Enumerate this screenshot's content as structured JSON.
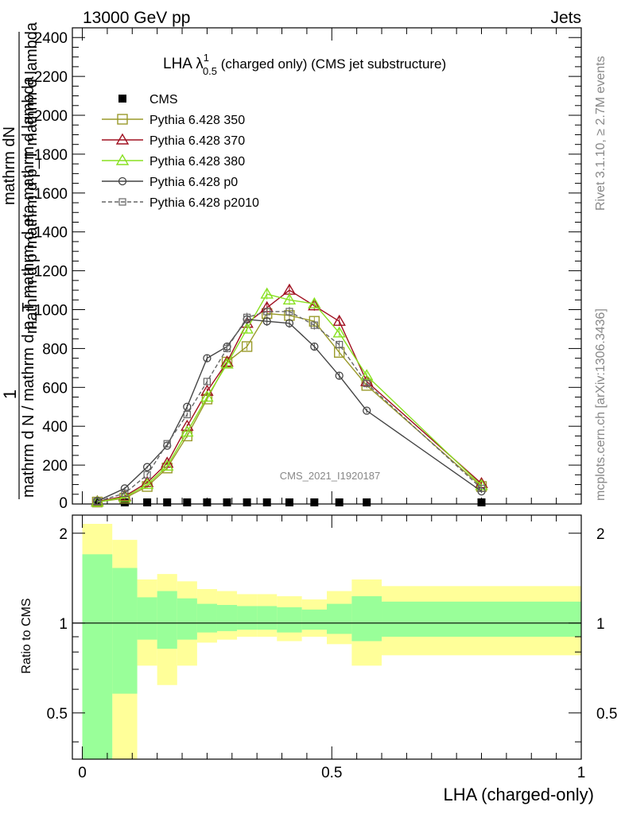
{
  "header": {
    "left": "13000 GeV pp",
    "right": "Jets"
  },
  "side_labels": {
    "rivet": "Rivet 3.1.10, ≥ 2.7M events",
    "mcplots": "mcplots.cern.ch [arXiv:1306.3436]"
  },
  "watermark": "CMS_2021_I1920187",
  "chart_data": [
    {
      "type": "line",
      "title_main": "LHA λ",
      "title_sup": "1",
      "title_sub": "0.5",
      "title_rest": " (charged only) (CMS jet substructure)",
      "ylabel_frac_top": "1",
      "ylabel_num_inner": "mathrm dN",
      "ylabel_den_inner": "mathrm d p mathrm d p_T mathrm d lambda",
      "ylabel_den_outer": "mathrm d N / mathrm d p_T mathrm d eta mathrm d lambda",
      "xlim": [
        -0.02,
        1.0
      ],
      "ylim": [
        0,
        2450
      ],
      "yticks": [
        200,
        400,
        600,
        800,
        1000,
        1200,
        1400,
        1600,
        1800,
        2000,
        2200,
        2400
      ],
      "ytick_labels": [
        "200",
        "400",
        "600",
        "800",
        "1000",
        "1200",
        "1400",
        "1600",
        "1800",
        "2000",
        "2200",
        "2400"
      ],
      "ytick_zero_label": "0",
      "x": [
        0.03,
        0.085,
        0.13,
        0.17,
        0.21,
        0.25,
        0.29,
        0.33,
        0.37,
        0.415,
        0.465,
        0.515,
        0.57,
        0.8
      ],
      "series": [
        {
          "name": "CMS",
          "marker": "filled-square",
          "color": "#000000",
          "values": [
            3,
            3,
            3,
            3,
            3,
            3,
            3,
            3,
            3,
            3,
            3,
            3,
            3,
            3
          ]
        },
        {
          "name": "Pythia 6.428 350",
          "marker": "open-square",
          "color": "#9a9a2a",
          "values": [
            10,
            30,
            90,
            185,
            350,
            540,
            730,
            810,
            980,
            970,
            940,
            780,
            610,
            90
          ]
        },
        {
          "name": "Pythia 6.428 370",
          "marker": "open-triangle",
          "color": "#a01020",
          "values": [
            12,
            40,
            110,
            210,
            400,
            580,
            730,
            930,
            1010,
            1100,
            1020,
            940,
            630,
            105
          ]
        },
        {
          "name": "Pythia 6.428 380",
          "marker": "open-triangle",
          "color": "#88e020",
          "values": [
            10,
            35,
            100,
            195,
            370,
            550,
            720,
            900,
            1080,
            1050,
            1030,
            880,
            660,
            95
          ]
        },
        {
          "name": "Pythia 6.428 p0",
          "marker": "open-circle",
          "color": "#444444",
          "values": [
            15,
            80,
            190,
            300,
            500,
            750,
            810,
            950,
            940,
            930,
            810,
            660,
            480,
            65
          ]
        },
        {
          "name": "Pythia 6.428 p2010",
          "marker": "open-square-small",
          "dashed": true,
          "color": "#666666",
          "values": [
            13,
            55,
            150,
            310,
            460,
            630,
            800,
            960,
            990,
            990,
            920,
            820,
            620,
            80
          ]
        }
      ]
    },
    {
      "type": "area",
      "ylabel": "Ratio to CMS",
      "xlabel": "LHA (charged-only)",
      "xlim": [
        -0.02,
        1.0
      ],
      "ylim": [
        0.35,
        2.3
      ],
      "ytick_labels": [
        "0.5",
        "1",
        "2"
      ],
      "xtick_labels": [
        "0",
        "0.5",
        "1"
      ],
      "bin_edges": [
        0.0,
        0.06,
        0.11,
        0.15,
        0.19,
        0.23,
        0.27,
        0.31,
        0.35,
        0.39,
        0.44,
        0.49,
        0.54,
        0.6,
        1.0
      ],
      "bands": [
        {
          "name": "outer",
          "color": "#ffff99",
          "low": [
            0.35,
            0.35,
            0.72,
            0.62,
            0.72,
            0.86,
            0.88,
            0.9,
            0.9,
            0.87,
            0.9,
            0.85,
            0.72,
            0.78
          ],
          "high": [
            2.15,
            1.9,
            1.4,
            1.46,
            1.38,
            1.3,
            1.28,
            1.25,
            1.25,
            1.23,
            1.2,
            1.28,
            1.4,
            1.33
          ]
        },
        {
          "name": "inner",
          "color": "#99ff99",
          "low": [
            0.35,
            0.58,
            0.88,
            0.82,
            0.88,
            0.93,
            0.94,
            0.95,
            0.95,
            0.93,
            0.95,
            0.92,
            0.87,
            0.9
          ],
          "high": [
            1.7,
            1.53,
            1.22,
            1.28,
            1.21,
            1.16,
            1.15,
            1.14,
            1.14,
            1.13,
            1.11,
            1.16,
            1.23,
            1.18
          ]
        }
      ]
    }
  ]
}
